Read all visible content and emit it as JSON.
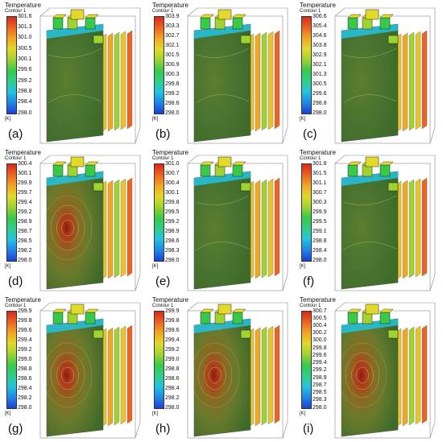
{
  "legend": {
    "title": "Temperature",
    "subtitle": "Contour 1",
    "unit": "[K]"
  },
  "colors": {
    "scale": [
      "#1f3fd6",
      "#1f86e6",
      "#22c3e0",
      "#2ecf8a",
      "#39c94a",
      "#9fd32f",
      "#e2d92a",
      "#f2a623",
      "#ec6422",
      "#d62a1e"
    ],
    "pack_body": "#3e6b2a",
    "hot_core": "#8b1c10",
    "cell_edge": "#6d6d6d"
  },
  "panels": [
    {
      "label": "(a)",
      "ticks": [
        "301.6",
        "301.3",
        "301.0",
        "300.5",
        "300.1",
        "299.6",
        "299.2",
        "298.8",
        "298.4",
        "298.0"
      ]
    },
    {
      "label": "(b)",
      "ticks": [
        "303.9",
        "303.3",
        "302.7",
        "302.1",
        "301.5",
        "300.9",
        "300.3",
        "299.8",
        "299.2",
        "298.6",
        "298.0"
      ]
    },
    {
      "label": "(c)",
      "ticks": [
        "306.6",
        "305.4",
        "304.6",
        "303.8",
        "302.9",
        "302.1",
        "301.3",
        "300.5",
        "299.6",
        "298.8",
        "298.0"
      ]
    },
    {
      "label": "(d)",
      "ticks": [
        "300.4",
        "300.1",
        "299.9",
        "299.7",
        "299.4",
        "299.2",
        "298.9",
        "298.7",
        "298.5",
        "298.2",
        "298.0"
      ]
    },
    {
      "label": "(e)",
      "ticks": [
        "301.0",
        "300.7",
        "300.4",
        "300.1",
        "299.8",
        "299.5",
        "299.2",
        "298.9",
        "298.6",
        "298.3",
        "298.0"
      ]
    },
    {
      "label": "(f)",
      "ticks": [
        "301.8",
        "301.5",
        "301.1",
        "300.7",
        "300.3",
        "299.9",
        "299.5",
        "299.1",
        "298.8",
        "298.4",
        "298.0"
      ]
    },
    {
      "label": "(g)",
      "ticks": [
        "299.9",
        "299.8",
        "299.6",
        "299.4",
        "299.2",
        "299.0",
        "298.8",
        "298.6",
        "298.4",
        "298.2",
        "298.0"
      ]
    },
    {
      "label": "(h)",
      "ticks": [
        "299.9",
        "299.8",
        "299.6",
        "299.4",
        "299.2",
        "299.0",
        "298.8",
        "298.6",
        "298.4",
        "298.2",
        "298.0"
      ]
    },
    {
      "label": "(i)",
      "ticks": [
        "300.7",
        "300.5",
        "300.4",
        "300.2",
        "300.0",
        "299.8",
        "299.6",
        "299.4",
        "299.2",
        "298.9",
        "298.7",
        "298.5",
        "298.3",
        "298.0"
      ]
    }
  ]
}
